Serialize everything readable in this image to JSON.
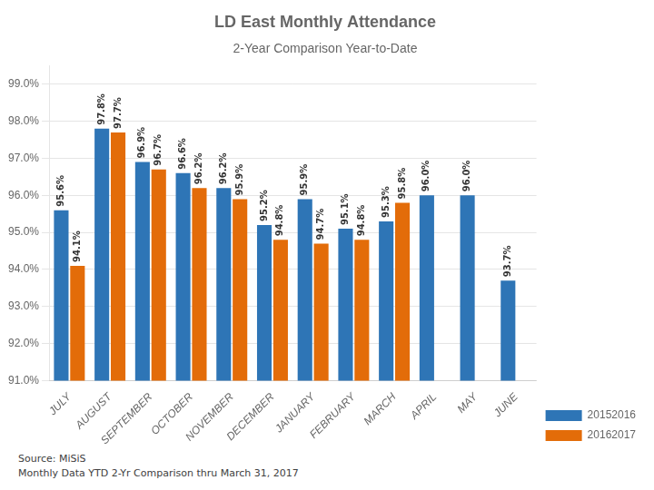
{
  "chart_data": {
    "type": "bar",
    "title": "LD East Monthly Attendance",
    "subtitle": "2-Year Comparison Year-to-Date",
    "annotations": [
      "Source: MiSiS\nMonthly Data YTD 2-Yr Comparison thru March 31, 2017"
    ],
    "categories": [
      "JULY",
      "AUGUST",
      "SEPTEMBER",
      "OCTOBER",
      "NOVEMBER",
      "DECEMBER",
      "JANUARY",
      "FEBRUARY",
      "MARCH",
      "APRIL",
      "MAY",
      "JUNE"
    ],
    "series": [
      {
        "name": "20152016",
        "color": "#2e75b6",
        "values": [
          95.6,
          97.8,
          96.9,
          96.6,
          96.2,
          95.2,
          95.9,
          95.1,
          95.3,
          96.0,
          96.0,
          93.7
        ],
        "value_labels": [
          "95.6%",
          "97.8%",
          "96.9%",
          "96.6%",
          "96.2%",
          "95.2%",
          "95.9%",
          "95.1%",
          "95.3%",
          "96.0%",
          "96.0%",
          "93.7%"
        ]
      },
      {
        "name": "20162017",
        "color": "#e36c09",
        "values": [
          94.1,
          97.7,
          96.7,
          96.2,
          95.9,
          94.8,
          94.7,
          94.8,
          95.8,
          null,
          null,
          null
        ],
        "value_labels": [
          "94.1%",
          "97.7%",
          "96.7%",
          "96.2%",
          "95.9%",
          "94.8%",
          "94.7%",
          "94.8%",
          "95.8%",
          null,
          null,
          null
        ]
      }
    ],
    "ylim": [
      91.0,
      99.5
    ],
    "yticks": [
      {
        "value": 91.0,
        "label": "91.0%"
      },
      {
        "value": 92.0,
        "label": "92.0%"
      },
      {
        "value": 93.0,
        "label": "93.0%"
      },
      {
        "value": 94.0,
        "label": "94.0%"
      },
      {
        "value": 95.0,
        "label": "95.0%"
      },
      {
        "value": 96.0,
        "label": "96.0%"
      },
      {
        "value": 97.0,
        "label": "97.0%"
      },
      {
        "value": 98.0,
        "label": "98.0%"
      },
      {
        "value": 99.0,
        "label": "99.0%"
      }
    ],
    "grid": true,
    "legend": "lower right",
    "data_labels": true
  }
}
